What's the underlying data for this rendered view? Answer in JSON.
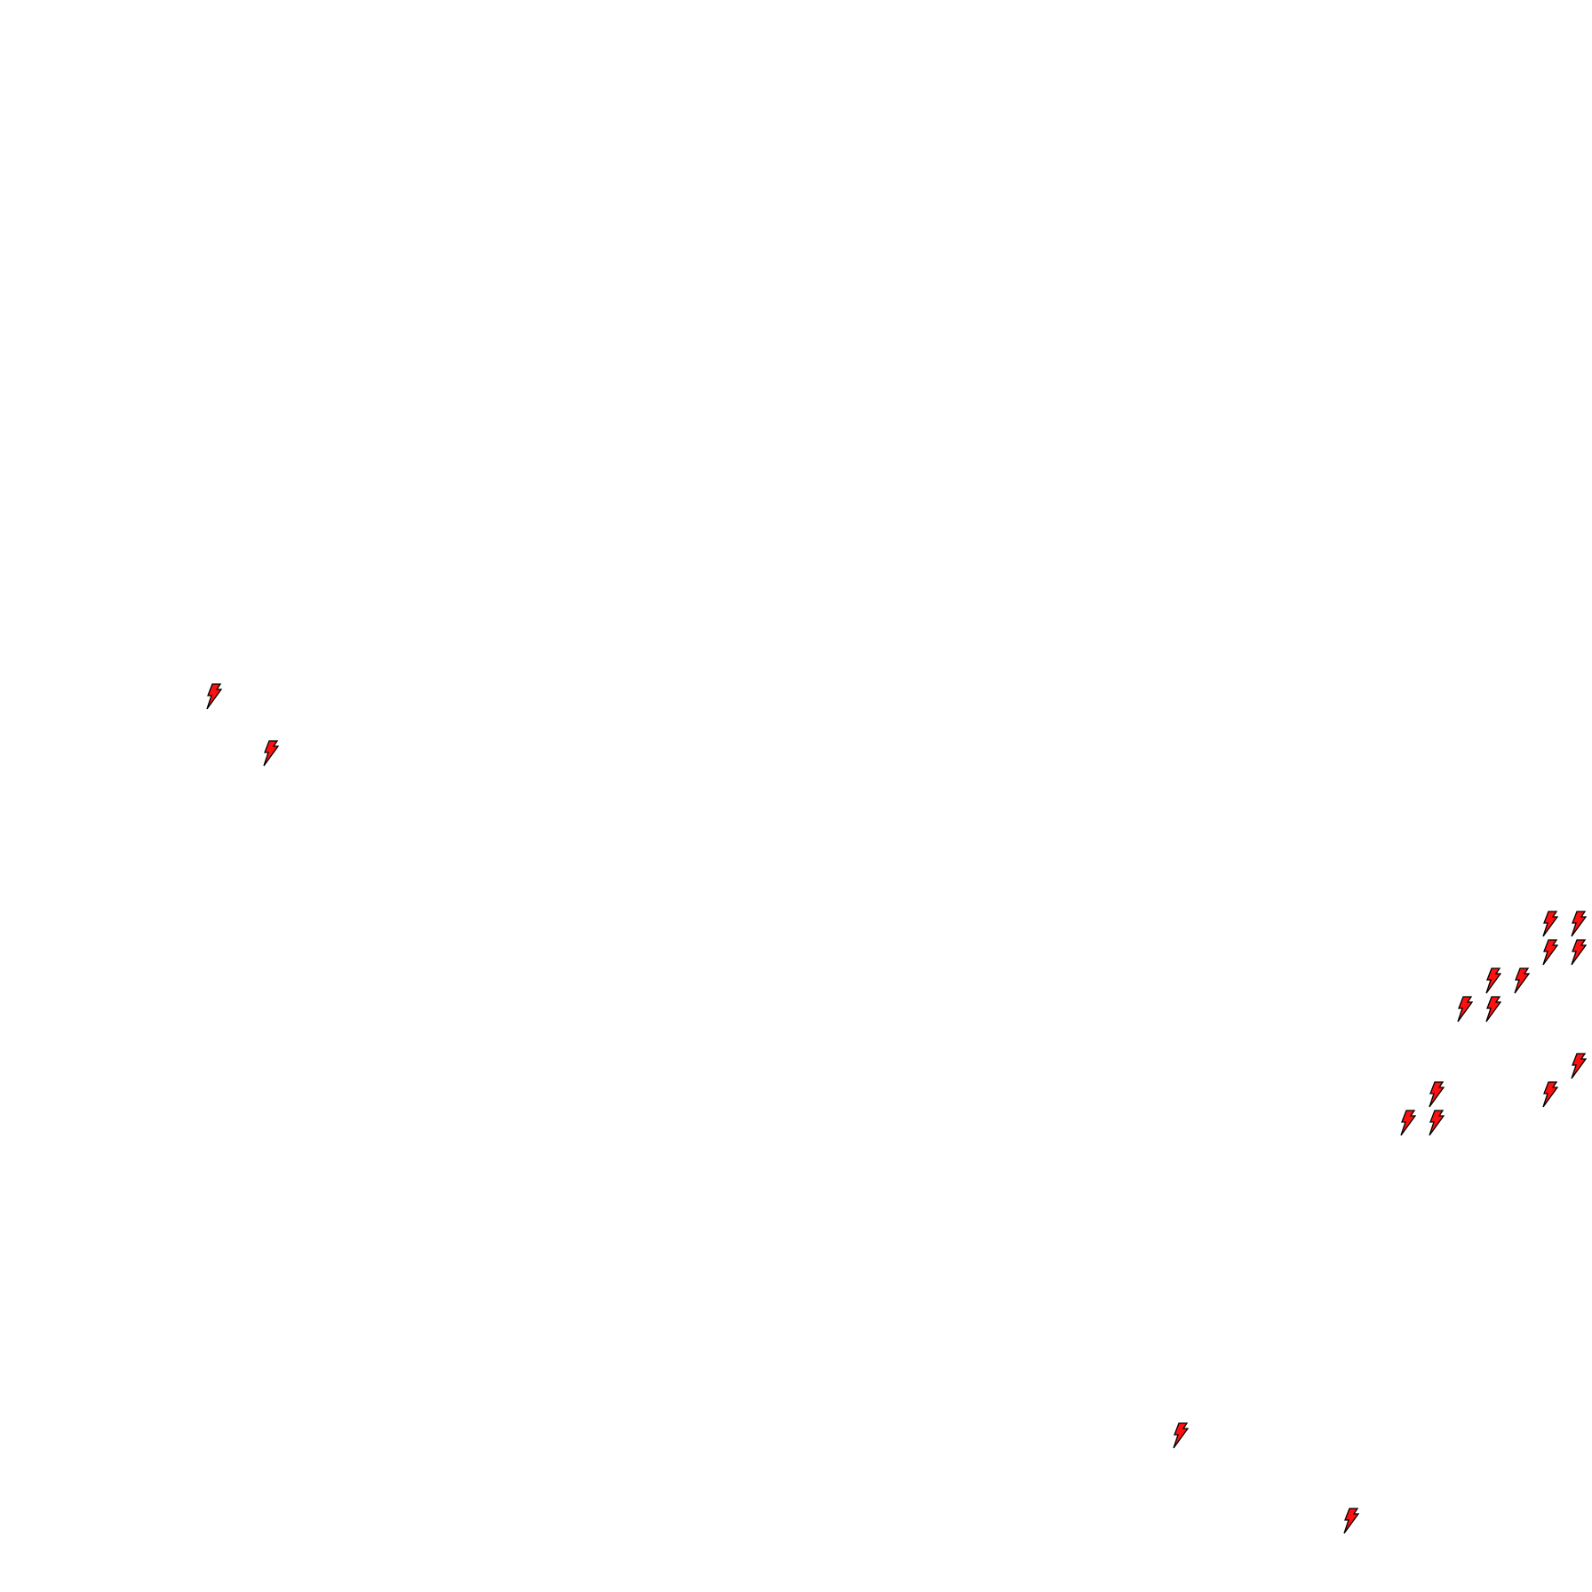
{
  "map": {
    "background_color": "#ffffff",
    "marker": {
      "icon": "lightning-bolt-icon",
      "fill_color": "#ff1010",
      "stroke_color": "#000000",
      "count": 17
    }
  }
}
